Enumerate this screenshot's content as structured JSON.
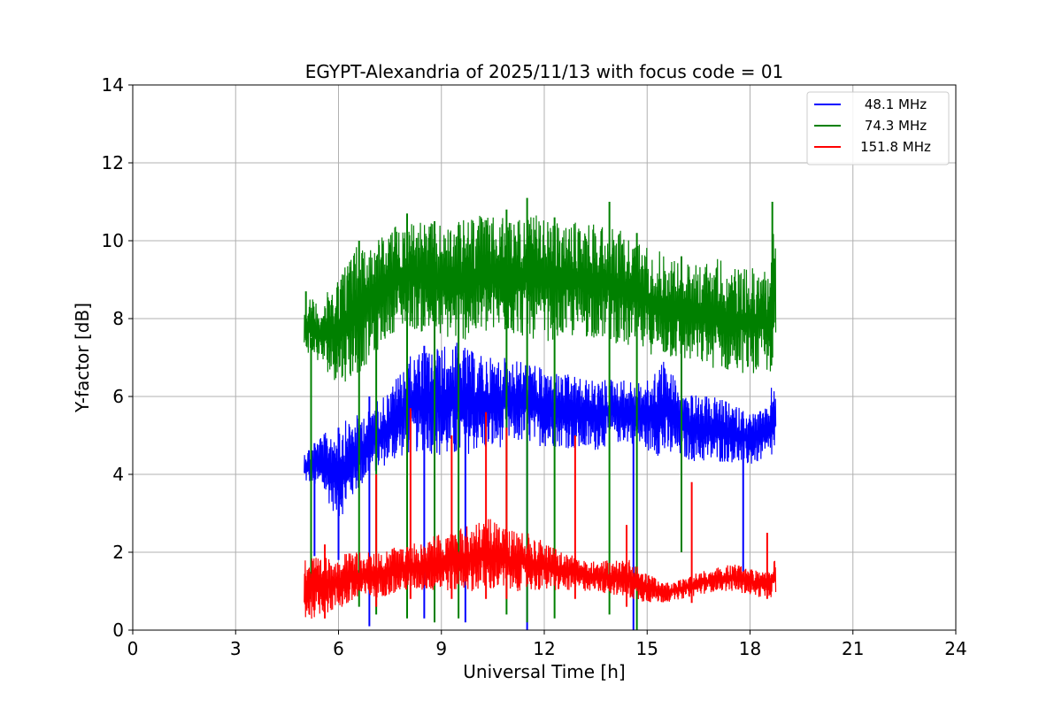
{
  "chart_data": {
    "type": "line",
    "title": "EGYPT-Alexandria of 2025/11/13 with focus code = 01",
    "xlabel": "Universal Time [h]",
    "ylabel": "Y-factor [dB]",
    "xlim": [
      0,
      24
    ],
    "ylim": [
      0,
      14
    ],
    "xticks": [
      0,
      3,
      6,
      9,
      12,
      15,
      18,
      21,
      24
    ],
    "yticks": [
      0,
      2,
      4,
      6,
      8,
      10,
      12,
      14
    ],
    "grid": true,
    "legend_position": "top-right",
    "series": [
      {
        "name": "48.1 MHz",
        "color": "#0000ff",
        "x": [
          5.0,
          5.5,
          6.0,
          6.5,
          7.0,
          7.5,
          8.0,
          8.5,
          9.0,
          9.5,
          10.0,
          10.5,
          11.0,
          11.5,
          12.0,
          12.5,
          13.0,
          13.5,
          14.0,
          14.5,
          15.0,
          15.5,
          16.0,
          16.5,
          17.0,
          17.5,
          18.0,
          18.5,
          18.75
        ],
        "y_low": [
          3.8,
          3.6,
          2.8,
          3.5,
          4.0,
          4.3,
          4.5,
          4.6,
          4.4,
          4.4,
          4.6,
          4.6,
          4.8,
          4.8,
          4.7,
          4.7,
          4.6,
          4.6,
          4.8,
          4.8,
          4.6,
          4.4,
          4.4,
          4.3,
          4.3,
          4.3,
          4.2,
          4.4,
          4.4
        ],
        "y_high": [
          4.6,
          5.0,
          5.3,
          5.5,
          5.8,
          6.2,
          7.0,
          7.2,
          7.3,
          7.4,
          7.1,
          7.0,
          7.0,
          6.9,
          6.7,
          6.6,
          6.5,
          6.4,
          6.5,
          6.4,
          6.4,
          7.0,
          6.2,
          6.0,
          6.0,
          5.8,
          5.6,
          5.7,
          6.8
        ]
      },
      {
        "name": "74.3 MHz",
        "color": "#008000",
        "x": [
          5.0,
          5.5,
          6.0,
          6.5,
          7.0,
          7.5,
          8.0,
          8.5,
          9.0,
          9.5,
          10.0,
          10.5,
          11.0,
          11.5,
          12.0,
          12.5,
          13.0,
          13.5,
          14.0,
          14.5,
          15.0,
          15.5,
          16.0,
          16.5,
          17.0,
          17.5,
          18.0,
          18.5,
          18.75
        ],
        "y_low": [
          7.2,
          6.8,
          6.3,
          6.5,
          7.0,
          7.6,
          7.8,
          7.6,
          7.5,
          7.4,
          7.5,
          7.6,
          7.6,
          7.5,
          7.4,
          7.5,
          7.5,
          7.5,
          7.4,
          7.2,
          7.1,
          7.0,
          6.9,
          6.8,
          6.7,
          6.6,
          6.6,
          6.5,
          6.7
        ],
        "y_high": [
          8.6,
          8.4,
          9.2,
          9.9,
          10.0,
          10.3,
          10.6,
          10.5,
          10.4,
          10.5,
          10.7,
          10.6,
          10.6,
          10.7,
          10.6,
          10.4,
          10.5,
          10.5,
          10.4,
          10.1,
          9.9,
          9.7,
          9.5,
          9.4,
          9.6,
          9.3,
          9.3,
          9.3,
          11.0
        ]
      },
      {
        "name": "151.8 MHz",
        "color": "#ff0000",
        "x": [
          5.0,
          5.5,
          6.0,
          6.5,
          7.0,
          7.5,
          8.0,
          8.5,
          9.0,
          9.5,
          10.0,
          10.5,
          11.0,
          11.5,
          12.0,
          12.5,
          13.0,
          13.5,
          14.0,
          14.5,
          15.0,
          15.5,
          16.0,
          16.5,
          17.0,
          17.5,
          18.0,
          18.5,
          18.75
        ],
        "y_low": [
          0.2,
          0.4,
          0.5,
          0.7,
          0.8,
          0.9,
          1.0,
          1.0,
          1.0,
          1.0,
          1.0,
          1.0,
          1.0,
          1.0,
          1.0,
          1.0,
          1.0,
          1.0,
          0.9,
          0.8,
          0.7,
          0.7,
          0.8,
          0.9,
          1.0,
          1.0,
          0.9,
          0.8,
          0.9
        ],
        "y_high": [
          2.0,
          1.8,
          2.0,
          2.0,
          2.0,
          2.1,
          2.2,
          2.3,
          2.5,
          2.6,
          2.8,
          2.9,
          2.6,
          2.5,
          2.3,
          2.0,
          1.9,
          1.8,
          1.8,
          1.8,
          1.5,
          1.2,
          1.3,
          1.5,
          1.6,
          1.7,
          1.6,
          1.5,
          1.9
        ]
      }
    ],
    "spikes": [
      {
        "series": "48.1 MHz",
        "x": 5.3,
        "ymin": 1.9,
        "ymax": 4.8
      },
      {
        "series": "48.1 MHz",
        "x": 6.0,
        "ymin": 1.8,
        "ymax": 5.2
      },
      {
        "series": "48.1 MHz",
        "x": 6.9,
        "ymin": 0.1,
        "ymax": 6.0
      },
      {
        "series": "48.1 MHz",
        "x": 8.5,
        "ymin": 0.3,
        "ymax": 7.3
      },
      {
        "series": "48.1 MHz",
        "x": 9.7,
        "ymin": 0.2,
        "ymax": 7.0
      },
      {
        "series": "48.1 MHz",
        "x": 11.5,
        "ymin": 0.0,
        "ymax": 6.8
      },
      {
        "series": "48.1 MHz",
        "x": 14.6,
        "ymin": 0.0,
        "ymax": 5.5
      },
      {
        "series": "48.1 MHz",
        "x": 17.8,
        "ymin": 1.5,
        "ymax": 5.0
      },
      {
        "series": "74.3 MHz",
        "x": 5.05,
        "ymin": 7.5,
        "ymax": 8.7
      },
      {
        "series": "74.3 MHz",
        "x": 5.2,
        "ymin": 0.8,
        "ymax": 7.5
      },
      {
        "series": "74.3 MHz",
        "x": 6.6,
        "ymin": 0.6,
        "ymax": 10.0
      },
      {
        "series": "74.3 MHz",
        "x": 7.1,
        "ymin": 0.4,
        "ymax": 9.5
      },
      {
        "series": "74.3 MHz",
        "x": 8.0,
        "ymin": 0.3,
        "ymax": 10.7
      },
      {
        "series": "74.3 MHz",
        "x": 8.8,
        "ymin": 0.2,
        "ymax": 10.5
      },
      {
        "series": "74.3 MHz",
        "x": 9.5,
        "ymin": 0.3,
        "ymax": 10.4
      },
      {
        "series": "74.3 MHz",
        "x": 10.9,
        "ymin": 0.4,
        "ymax": 10.8
      },
      {
        "series": "74.3 MHz",
        "x": 11.5,
        "ymin": 0.2,
        "ymax": 11.1
      },
      {
        "series": "74.3 MHz",
        "x": 12.3,
        "ymin": 0.3,
        "ymax": 10.6
      },
      {
        "series": "74.3 MHz",
        "x": 13.9,
        "ymin": 0.4,
        "ymax": 11.0
      },
      {
        "series": "74.3 MHz",
        "x": 14.7,
        "ymin": 0.0,
        "ymax": 10.2
      },
      {
        "series": "74.3 MHz",
        "x": 16.0,
        "ymin": 2.0,
        "ymax": 9.6
      },
      {
        "series": "74.3 MHz",
        "x": 18.65,
        "ymin": 7.0,
        "ymax": 11.0
      },
      {
        "series": "151.8 MHz",
        "x": 5.6,
        "ymin": 0.3,
        "ymax": 2.2
      },
      {
        "series": "151.8 MHz",
        "x": 7.1,
        "ymin": 0.6,
        "ymax": 4.0
      },
      {
        "series": "151.8 MHz",
        "x": 8.1,
        "ymin": 0.8,
        "ymax": 5.7
      },
      {
        "series": "151.8 MHz",
        "x": 9.3,
        "ymin": 0.8,
        "ymax": 5.0
      },
      {
        "series": "151.8 MHz",
        "x": 10.3,
        "ymin": 0.8,
        "ymax": 5.6
      },
      {
        "series": "151.8 MHz",
        "x": 10.9,
        "ymin": 0.8,
        "ymax": 5.2
      },
      {
        "series": "151.8 MHz",
        "x": 12.9,
        "ymin": 0.8,
        "ymax": 5.0
      },
      {
        "series": "151.8 MHz",
        "x": 14.4,
        "ymin": 0.6,
        "ymax": 2.7
      },
      {
        "series": "151.8 MHz",
        "x": 16.3,
        "ymin": 0.7,
        "ymax": 3.8
      },
      {
        "series": "151.8 MHz",
        "x": 18.5,
        "ymin": 0.8,
        "ymax": 2.5
      }
    ]
  }
}
